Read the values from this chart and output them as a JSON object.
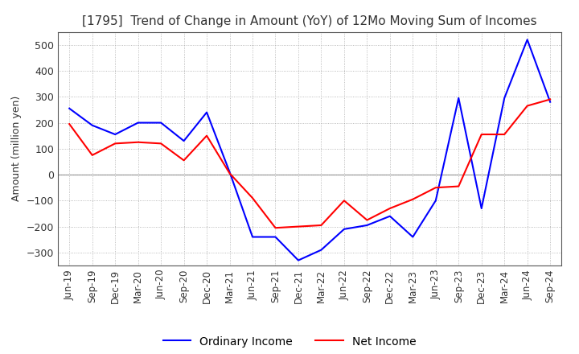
{
  "title": "[1795]  Trend of Change in Amount (YoY) of 12Mo Moving Sum of Incomes",
  "ylabel": "Amount (million yen)",
  "ylim": [
    -350,
    550
  ],
  "yticks": [
    -300,
    -200,
    -100,
    0,
    100,
    200,
    300,
    400,
    500
  ],
  "background_color": "#ffffff",
  "grid_color": "#aaaaaa",
  "ordinary_income_color": "#0000ff",
  "net_income_color": "#ff0000",
  "x_labels": [
    "Jun-19",
    "Sep-19",
    "Dec-19",
    "Mar-20",
    "Jun-20",
    "Sep-20",
    "Dec-20",
    "Mar-21",
    "Jun-21",
    "Sep-21",
    "Dec-21",
    "Mar-22",
    "Jun-22",
    "Sep-22",
    "Dec-22",
    "Mar-23",
    "Jun-23",
    "Sep-23",
    "Dec-23",
    "Mar-24",
    "Jun-24",
    "Sep-24"
  ],
  "ordinary_income": [
    255,
    190,
    155,
    200,
    200,
    130,
    240,
    10,
    -240,
    -240,
    -330,
    -290,
    -210,
    -195,
    -160,
    -240,
    -100,
    295,
    -130,
    295,
    520,
    280
  ],
  "net_income": [
    195,
    75,
    120,
    125,
    120,
    55,
    150,
    5,
    -90,
    -205,
    -200,
    -195,
    -100,
    -175,
    -130,
    -95,
    -50,
    -45,
    155,
    155,
    265,
    290
  ]
}
